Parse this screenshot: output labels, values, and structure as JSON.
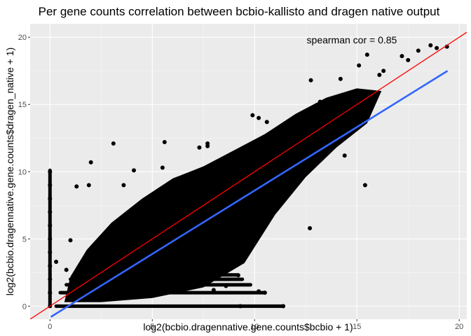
{
  "chart_data": {
    "type": "scatter",
    "title": "Per gene counts correlation between bcbio-kallisto and dragen native output",
    "xlabel": "log2(bcbio.dragennative.gene.counts$bcbio + 1)",
    "ylabel": "log2(bcbio.dragennative.gene.counts$dragen_native + 1)",
    "xlim": [
      -0.97,
      20.37
    ],
    "ylim": [
      -0.97,
      21.0
    ],
    "xticks": [
      0,
      5,
      10,
      15,
      20
    ],
    "yticks": [
      0,
      5,
      10,
      15,
      20
    ],
    "grid": true,
    "annotation": {
      "text": "spearman cor =  0.85",
      "x": 14.75,
      "y": 19.8
    },
    "identity_line": {
      "color": "#ff0000",
      "slope": 1,
      "intercept": 0
    },
    "fit_line": {
      "color": "#3366ff",
      "x": [
        0.04,
        19.43
      ],
      "y": [
        -0.8,
        17.5
      ]
    },
    "point_color": "#000000",
    "points_approx": [
      [
        12.75,
        16.8
      ],
      [
        15.5,
        18.7
      ],
      [
        16.3,
        17.5
      ],
      [
        17.2,
        18.6
      ],
      [
        17.5,
        18.3
      ],
      [
        18.0,
        19.0
      ],
      [
        18.6,
        19.4
      ],
      [
        18.9,
        19.2
      ],
      [
        19.4,
        19.3
      ],
      [
        16.1,
        17.2
      ],
      [
        15.1,
        17.9
      ],
      [
        14.2,
        16.9
      ],
      [
        13.2,
        15.2
      ],
      [
        11.2,
        13.3
      ],
      [
        10.6,
        13.7
      ],
      [
        9.9,
        14.2
      ],
      [
        10.2,
        14.0
      ],
      [
        12.8,
        14.5
      ],
      [
        13.0,
        12.8
      ],
      [
        14.4,
        11.2
      ],
      [
        15.4,
        9.0
      ],
      [
        12.7,
        5.8
      ],
      [
        11.5,
        11.3
      ],
      [
        10.8,
        10.4
      ],
      [
        7.7,
        12.1
      ],
      [
        7.7,
        11.9
      ],
      [
        3.1,
        12.1
      ],
      [
        5.6,
        12.2
      ],
      [
        7.3,
        11.8
      ],
      [
        2.0,
        10.7
      ],
      [
        1.3,
        8.9
      ],
      [
        1.9,
        9.0
      ],
      [
        3.6,
        9.0
      ],
      [
        4.1,
        10.1
      ],
      [
        5.5,
        10.3
      ],
      [
        8.8,
        6.6
      ],
      [
        9.9,
        8.5
      ],
      [
        8.5,
        10.2
      ],
      [
        7.8,
        8.5
      ],
      [
        9.4,
        8.4
      ],
      [
        4.5,
        4.9
      ],
      [
        5.8,
        5.5
      ],
      [
        6.4,
        4.8
      ],
      [
        8.8,
        4.2
      ],
      [
        9.7,
        5.4
      ],
      [
        9.2,
        2.3
      ],
      [
        8.7,
        4.6
      ],
      [
        8.0,
        1.2
      ],
      [
        8.6,
        1.5
      ],
      [
        10.5,
        1.0
      ],
      [
        9.3,
        0.0
      ],
      [
        11.4,
        0.0
      ],
      [
        10.2,
        1.1
      ],
      [
        2.8,
        2.3
      ],
      [
        1.9,
        3.6
      ],
      [
        1.0,
        4.9
      ],
      [
        1.3,
        1.9
      ],
      [
        0.8,
        2.7
      ],
      [
        0.3,
        3.3
      ],
      [
        0.0,
        10.0
      ],
      [
        0.0,
        9.0
      ],
      [
        0.0,
        8.0
      ],
      [
        0.0,
        7.0
      ],
      [
        0.0,
        6.0
      ],
      [
        0.0,
        5.0
      ],
      [
        0.0,
        4.0
      ],
      [
        0.0,
        3.0
      ],
      [
        0.0,
        2.0
      ],
      [
        0.0,
        1.0
      ],
      [
        0.0,
        0.0
      ]
    ],
    "bands_approx": [
      {
        "y": 0.0,
        "x_from": 0.3,
        "x_to": 11.4
      },
      {
        "y": 1.0,
        "x_from": 0.5,
        "x_to": 10.5
      },
      {
        "y": 1.59,
        "x_from": 0.8,
        "x_to": 9.8
      },
      {
        "y": 2.0,
        "x_from": 1.0,
        "x_to": 9.4
      },
      {
        "y": 2.32,
        "x_from": 1.4,
        "x_to": 9.2
      }
    ]
  }
}
